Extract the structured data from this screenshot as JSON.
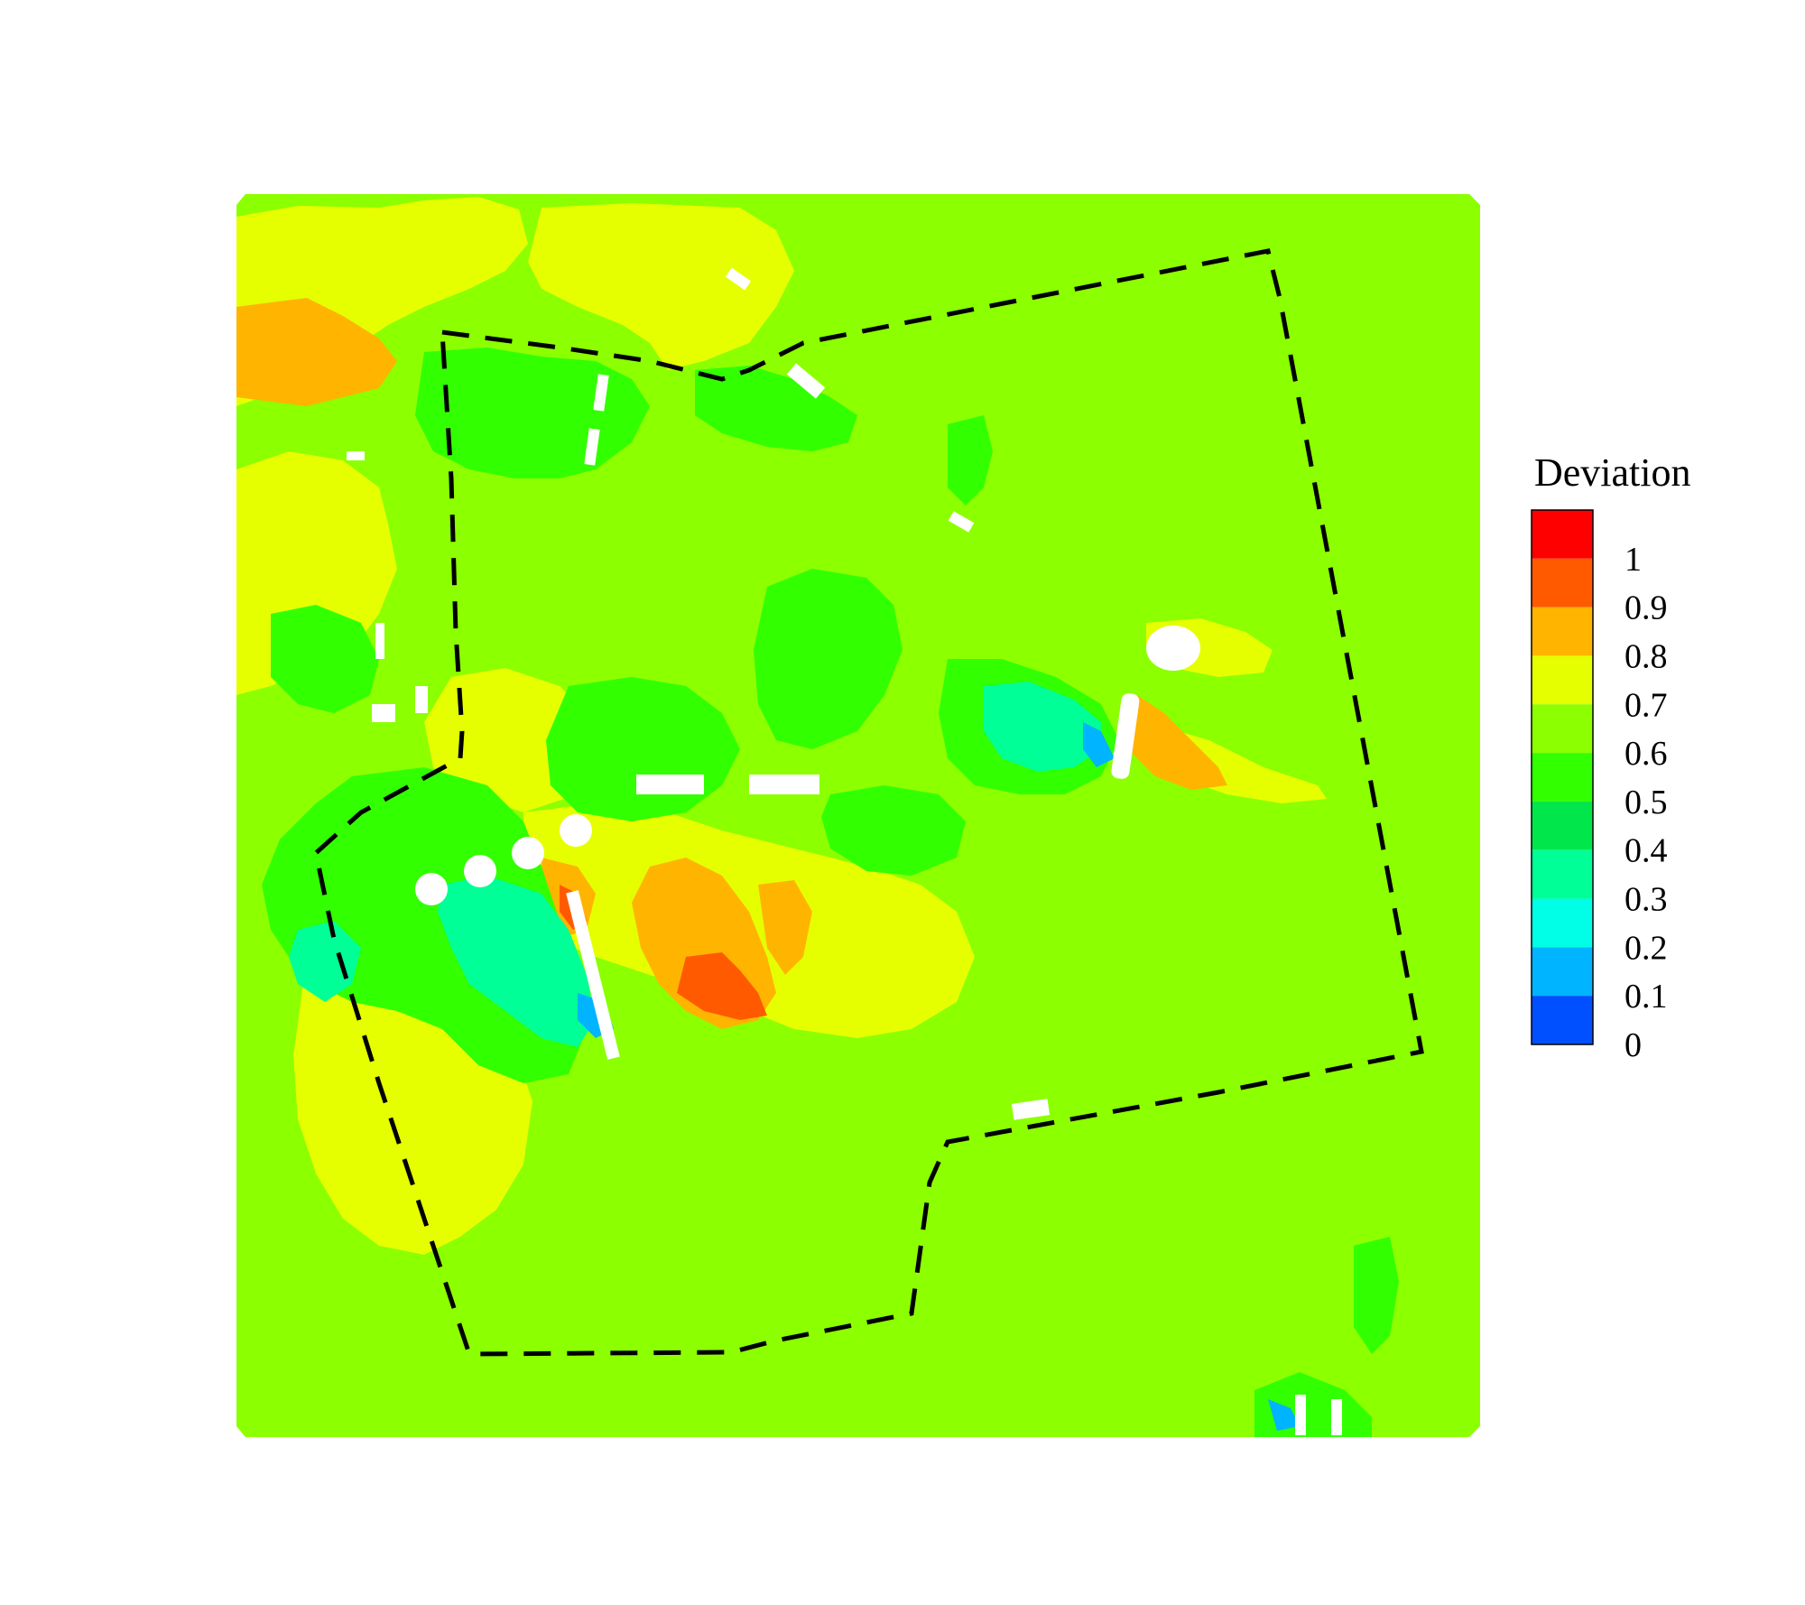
{
  "chart_data": {
    "type": "heatmap",
    "title": "",
    "colorbar": {
      "title": "Deviation",
      "tick_labels": [
        "1",
        "0.9",
        "0.8",
        "0.7",
        "0.6",
        "0.5",
        "0.4",
        "0.3",
        "0.2",
        "0.1",
        "0"
      ],
      "range": [
        0,
        1.1
      ],
      "levels": [
        {
          "min": 1.0,
          "max": 1.1,
          "color": "#ff0000"
        },
        {
          "min": 0.9,
          "max": 1.0,
          "color": "#ff5a00"
        },
        {
          "min": 0.8,
          "max": 0.9,
          "color": "#ffb400"
        },
        {
          "min": 0.7,
          "max": 0.8,
          "color": "#e6ff00"
        },
        {
          "min": 0.6,
          "max": 0.7,
          "color": "#8cff00"
        },
        {
          "min": 0.5,
          "max": 0.6,
          "color": "#32ff00"
        },
        {
          "min": 0.4,
          "max": 0.5,
          "color": "#00e64b"
        },
        {
          "min": 0.3,
          "max": 0.4,
          "color": "#00ff96"
        },
        {
          "min": 0.2,
          "max": 0.3,
          "color": "#00ffe6"
        },
        {
          "min": 0.1,
          "max": 0.2,
          "color": "#00b4ff"
        },
        {
          "min": 0.0,
          "max": 0.1,
          "color": "#0050ff"
        },
        {
          "min": -0.1,
          "max": 0.0,
          "color": "#0000ff"
        }
      ]
    },
    "background_level": 0.65,
    "grid": false,
    "legend_position": "right"
  }
}
